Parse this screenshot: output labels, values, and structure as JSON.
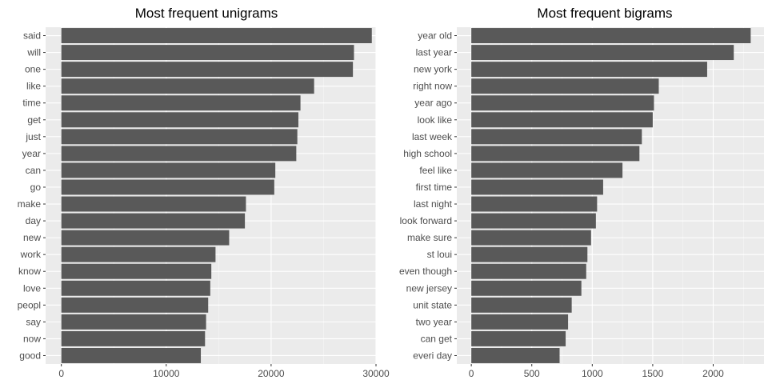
{
  "chart_data": [
    {
      "type": "bar",
      "orientation": "horizontal",
      "title": "Most frequent unigrams",
      "xlabel": "",
      "ylabel": "",
      "xlim": [
        -1500,
        30000
      ],
      "xticks": [
        0,
        10000,
        20000,
        30000
      ],
      "xtick_labels": [
        "0",
        "10000",
        "20000",
        "30000"
      ],
      "categories": [
        "said",
        "will",
        "one",
        "like",
        "time",
        "get",
        "just",
        "year",
        "can",
        "go",
        "make",
        "day",
        "new",
        "work",
        "know",
        "love",
        "peopl",
        "say",
        "now",
        "good"
      ],
      "values": [
        29600,
        27900,
        27800,
        24100,
        22800,
        22600,
        22500,
        22400,
        20400,
        20300,
        17600,
        17500,
        16000,
        14700,
        14300,
        14200,
        14000,
        13800,
        13700,
        13300
      ],
      "bar_color": "#595959",
      "panel_background": "#ebebeb",
      "grid": true
    },
    {
      "type": "bar",
      "orientation": "horizontal",
      "title": "Most frequent bigrams",
      "xlabel": "",
      "ylabel": "",
      "xlim": [
        -120,
        2420
      ],
      "xticks": [
        0,
        500,
        1000,
        1500,
        2000
      ],
      "xtick_labels": [
        "0",
        "500",
        "1000",
        "1500",
        "2000"
      ],
      "categories": [
        "year old",
        "last year",
        "new york",
        "right now",
        "year ago",
        "look like",
        "last week",
        "high school",
        "feel like",
        "first time",
        "last night",
        "look forward",
        "make sure",
        "st loui",
        "even though",
        "new jersey",
        "unit state",
        "two year",
        "can get",
        "everi day"
      ],
      "values": [
        2310,
        2170,
        1950,
        1550,
        1510,
        1500,
        1410,
        1390,
        1250,
        1090,
        1040,
        1030,
        990,
        960,
        950,
        910,
        830,
        800,
        780,
        730
      ],
      "bar_color": "#595959",
      "panel_background": "#ebebeb",
      "grid": true
    }
  ]
}
